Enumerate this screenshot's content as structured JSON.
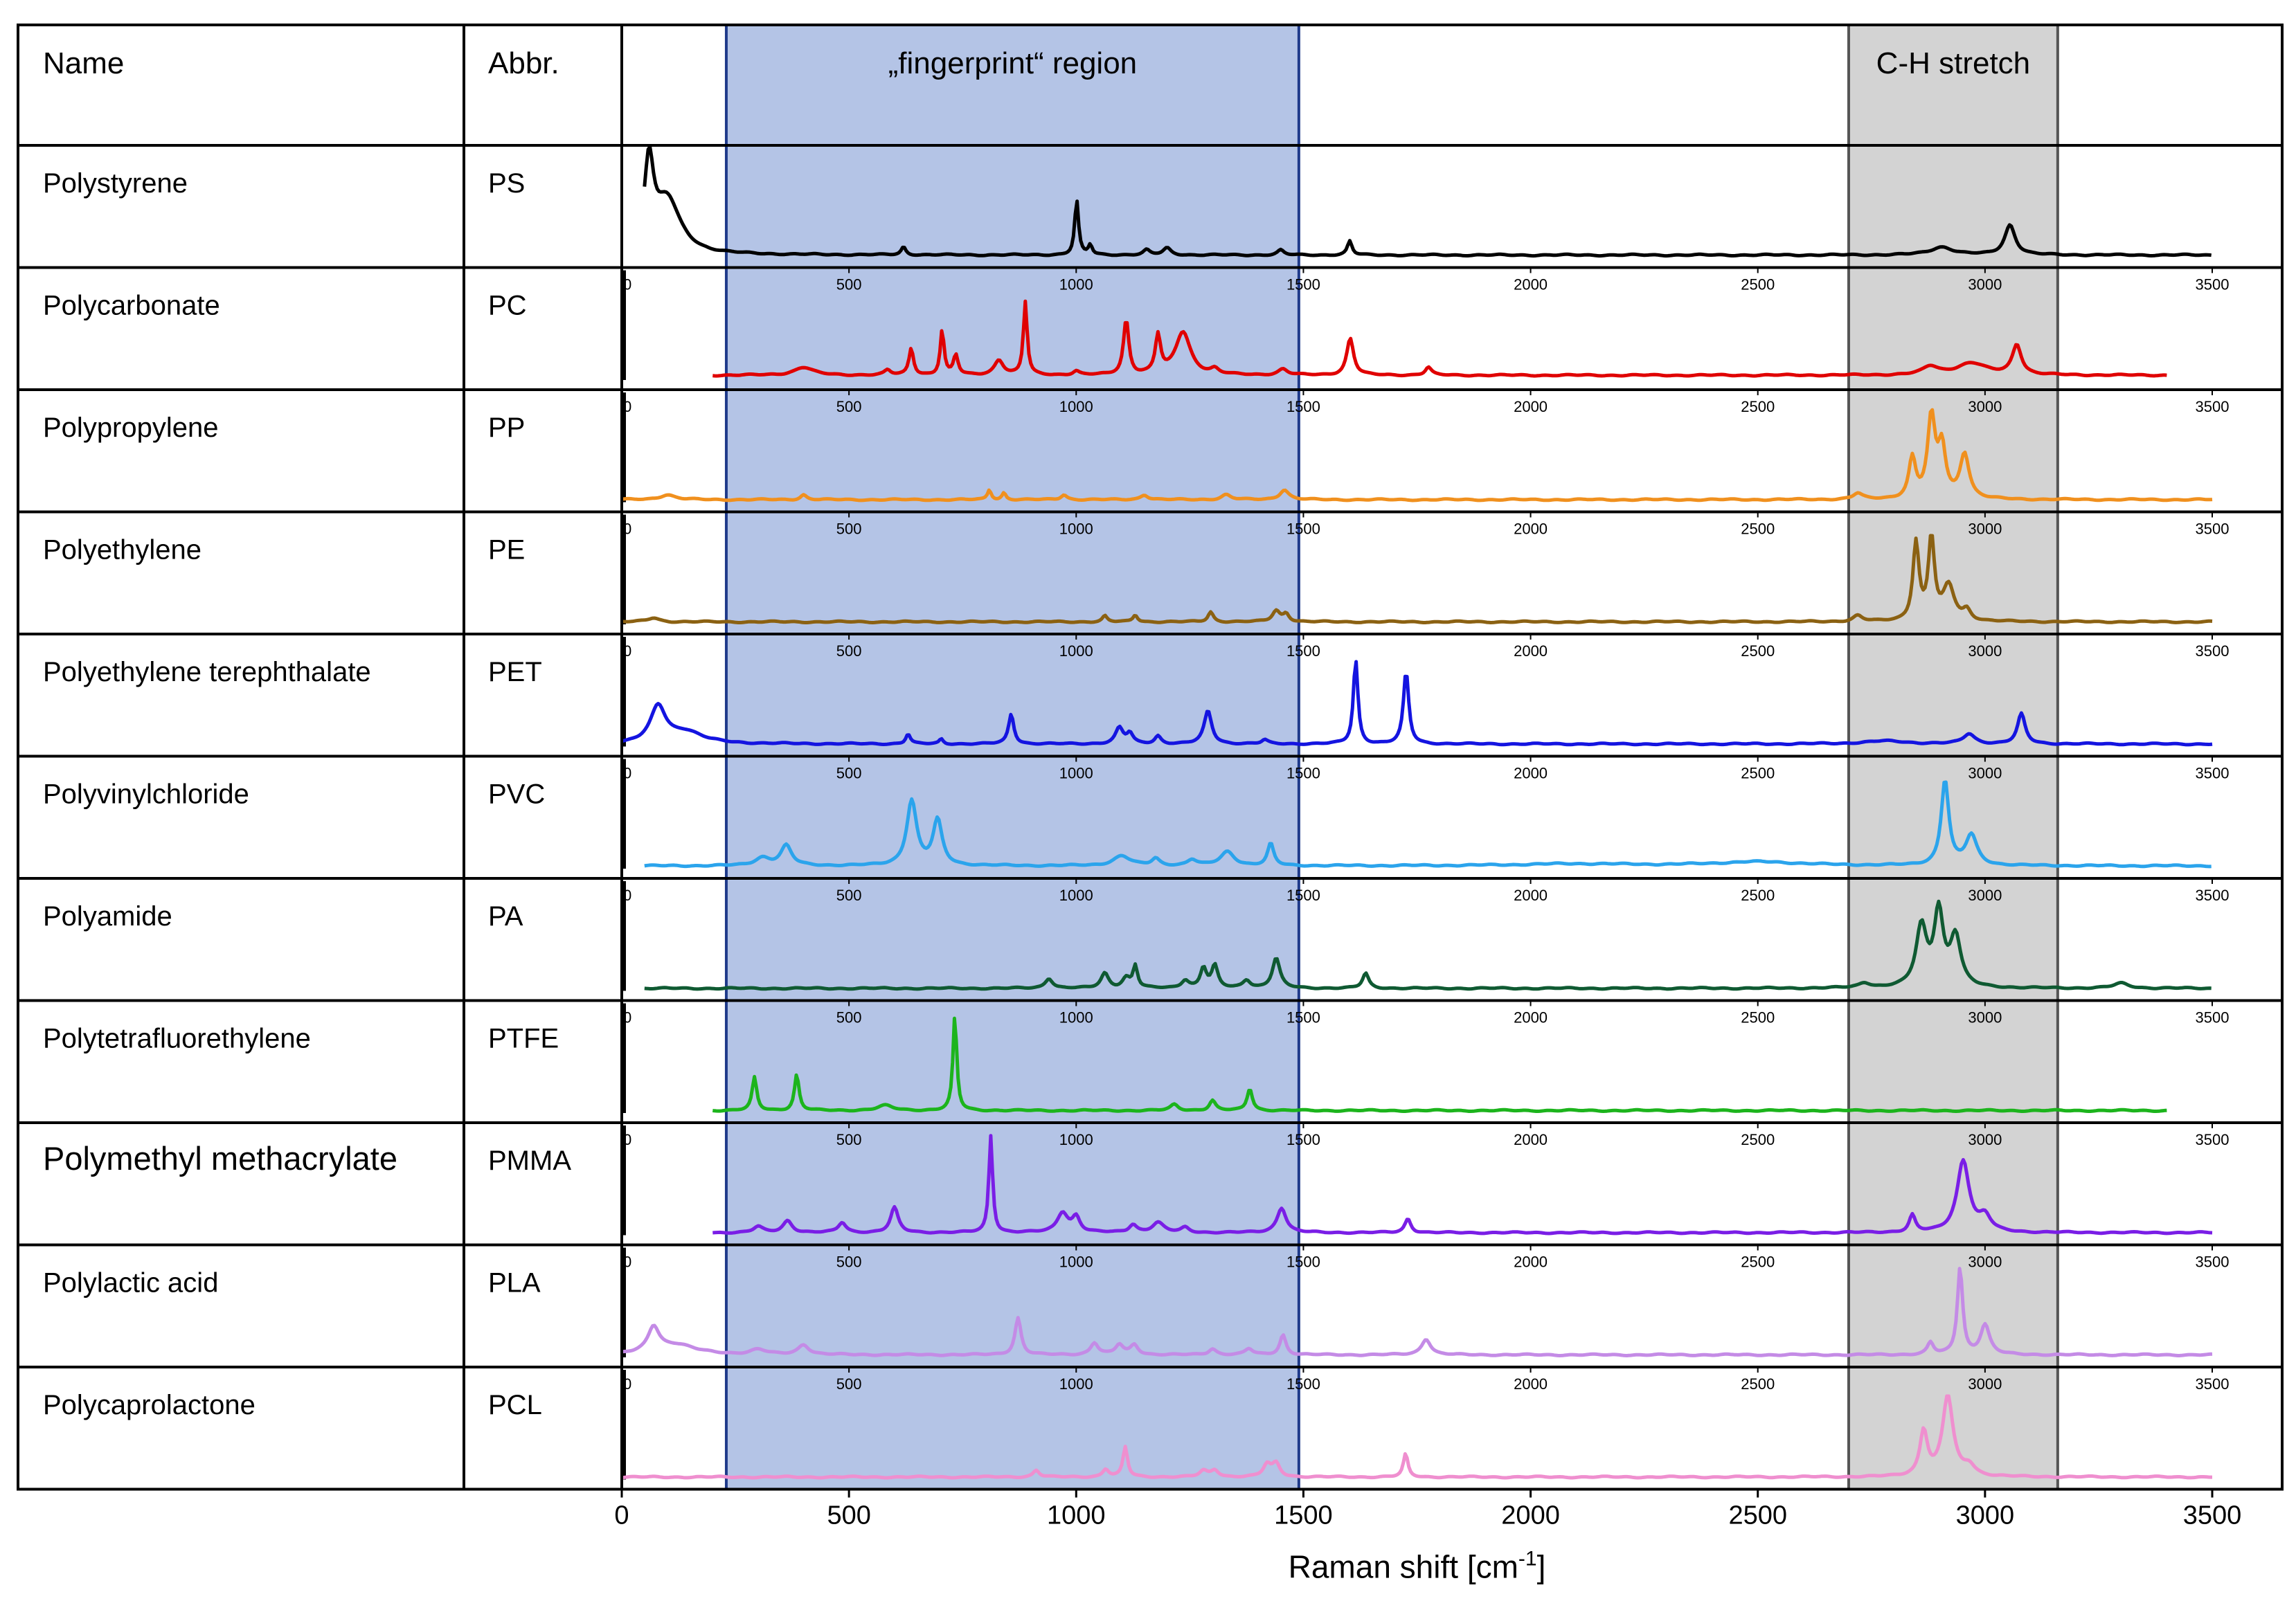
{
  "header": {
    "name_col": "Name",
    "abbr_col": "Abbr.",
    "fingerprint_label": "„fingerprint“ region",
    "ch_label": "C-H stretch"
  },
  "chart_data": {
    "type": "line",
    "title": "",
    "xlabel_main": "Raman shift [cm",
    "xlabel_sup": "-1",
    "xlabel_end": "]",
    "xlim": [
      0,
      3500
    ],
    "x_ticks": [
      "0",
      "500",
      "1000",
      "1500",
      "2000",
      "2500",
      "3000",
      "3500"
    ],
    "mini_ticks": [
      "0",
      "500",
      "1000",
      "1500",
      "2000",
      "2500",
      "3000",
      "3500"
    ],
    "regions": [
      {
        "label": "„fingerprint“ region",
        "from": 230,
        "to": 1490,
        "color": "#b4c4e6",
        "edge": "#1f3a8a"
      },
      {
        "label": "C-H stretch",
        "from": 2700,
        "to": 3160,
        "color": "#d3d3d3",
        "edge": "#555555"
      }
    ],
    "series": [
      {
        "name": "Polystyrene",
        "abbr": "PS",
        "color": "#000000",
        "x_start": 50,
        "x_end": 3500,
        "baseline": 0.05,
        "peaks": [
          [
            60,
            0.86,
            12
          ],
          [
            100,
            0.55,
            35
          ],
          [
            620,
            0.08,
            6
          ],
          [
            1001,
            0.55,
            5
          ],
          [
            1031,
            0.1,
            5
          ],
          [
            1155,
            0.05,
            8
          ],
          [
            1200,
            0.07,
            10
          ],
          [
            1450,
            0.05,
            8
          ],
          [
            1602,
            0.14,
            6
          ],
          [
            2905,
            0.08,
            30
          ],
          [
            3055,
            0.3,
            14
          ]
        ]
      },
      {
        "name": "Polycarbonate",
        "abbr": "PC",
        "color": "#e00000",
        "x_start": 200,
        "x_end": 3400,
        "baseline": 0.12,
        "peaks": [
          [
            400,
            0.08,
            25
          ],
          [
            585,
            0.05,
            8
          ],
          [
            637,
            0.27,
            6
          ],
          [
            705,
            0.45,
            5
          ],
          [
            735,
            0.2,
            6
          ],
          [
            830,
            0.15,
            12
          ],
          [
            888,
            0.73,
            5
          ],
          [
            1000,
            0.04,
            8
          ],
          [
            1110,
            0.55,
            7
          ],
          [
            1180,
            0.38,
            7
          ],
          [
            1235,
            0.43,
            20
          ],
          [
            1305,
            0.05,
            10
          ],
          [
            1455,
            0.06,
            12
          ],
          [
            1603,
            0.37,
            9
          ],
          [
            1775,
            0.08,
            8
          ],
          [
            2880,
            0.08,
            20
          ],
          [
            2970,
            0.12,
            40
          ],
          [
            3070,
            0.3,
            12
          ]
        ]
      },
      {
        "name": "Polypropylene",
        "abbr": "PP",
        "color": "#f0901e",
        "x_start": 0,
        "x_end": 3500,
        "baseline": 0.04,
        "peaks": [
          [
            100,
            0.05,
            20
          ],
          [
            400,
            0.05,
            8
          ],
          [
            809,
            0.1,
            5
          ],
          [
            841,
            0.07,
            5
          ],
          [
            973,
            0.05,
            8
          ],
          [
            1150,
            0.05,
            10
          ],
          [
            1330,
            0.05,
            12
          ],
          [
            1458,
            0.1,
            12
          ],
          [
            2720,
            0.06,
            12
          ],
          [
            2840,
            0.4,
            9
          ],
          [
            2882,
            0.8,
            10
          ],
          [
            2905,
            0.5,
            10
          ],
          [
            2955,
            0.45,
            12
          ]
        ]
      },
      {
        "name": "Polyethylene",
        "abbr": "PE",
        "color": "#8b6112",
        "x_start": 0,
        "x_end": 3500,
        "baseline": 0.04,
        "peaks": [
          [
            70,
            0.04,
            15
          ],
          [
            1063,
            0.06,
            6
          ],
          [
            1130,
            0.07,
            6
          ],
          [
            1296,
            0.1,
            7
          ],
          [
            1440,
            0.11,
            10
          ],
          [
            1462,
            0.08,
            8
          ],
          [
            2720,
            0.06,
            12
          ],
          [
            2848,
            0.78,
            8
          ],
          [
            2882,
            0.82,
            8
          ],
          [
            2920,
            0.35,
            15
          ],
          [
            2960,
            0.1,
            10
          ]
        ]
      },
      {
        "name": "Polyethylene terephthalate",
        "abbr": "PET",
        "color": "#1414e0",
        "x_start": 0,
        "x_end": 3500,
        "baseline": 0.04,
        "peaks": [
          [
            80,
            0.36,
            20
          ],
          [
            140,
            0.12,
            45
          ],
          [
            630,
            0.1,
            6
          ],
          [
            703,
            0.05,
            5
          ],
          [
            857,
            0.3,
            7
          ],
          [
            1095,
            0.16,
            10
          ],
          [
            1118,
            0.1,
            8
          ],
          [
            1180,
            0.08,
            8
          ],
          [
            1290,
            0.33,
            10
          ],
          [
            1415,
            0.04,
            8
          ],
          [
            1615,
            0.84,
            6
          ],
          [
            1726,
            0.72,
            7
          ],
          [
            2780,
            0.03,
            60
          ],
          [
            2965,
            0.1,
            15
          ],
          [
            3080,
            0.3,
            10
          ]
        ]
      },
      {
        "name": "Polyvinylchloride",
        "abbr": "PVC",
        "color": "#2ba4ec",
        "x_start": 50,
        "x_end": 3500,
        "baseline": 0.05,
        "peaks": [
          [
            310,
            0.08,
            20
          ],
          [
            362,
            0.2,
            14
          ],
          [
            638,
            0.65,
            13
          ],
          [
            695,
            0.45,
            12
          ],
          [
            1100,
            0.1,
            22
          ],
          [
            1175,
            0.07,
            10
          ],
          [
            1255,
            0.06,
            12
          ],
          [
            1333,
            0.14,
            18
          ],
          [
            1428,
            0.22,
            8
          ],
          [
            2100,
            0.02,
            150
          ],
          [
            2500,
            0.04,
            120
          ],
          [
            2912,
            0.85,
            10
          ],
          [
            2970,
            0.3,
            15
          ]
        ]
      },
      {
        "name": "Polyamide",
        "abbr": "PA",
        "color": "#0f5a32",
        "x_start": 50,
        "x_end": 3500,
        "baseline": 0.04,
        "peaks": [
          [
            940,
            0.1,
            10
          ],
          [
            1063,
            0.15,
            10
          ],
          [
            1110,
            0.1,
            10
          ],
          [
            1130,
            0.22,
            6
          ],
          [
            1240,
            0.08,
            10
          ],
          [
            1280,
            0.2,
            8
          ],
          [
            1305,
            0.22,
            8
          ],
          [
            1375,
            0.08,
            10
          ],
          [
            1440,
            0.3,
            10
          ],
          [
            1637,
            0.15,
            8
          ],
          [
            2735,
            0.05,
            15
          ],
          [
            2860,
            0.6,
            14
          ],
          [
            2898,
            0.74,
            12
          ],
          [
            2935,
            0.5,
            14
          ],
          [
            3300,
            0.05,
            20
          ]
        ]
      },
      {
        "name": "Polytetrafluorethylene",
        "abbr": "PTFE",
        "color": "#1cb41c",
        "x_start": 200,
        "x_end": 3400,
        "baseline": 0.04,
        "peaks": [
          [
            292,
            0.33,
            6
          ],
          [
            385,
            0.36,
            6
          ],
          [
            580,
            0.05,
            20
          ],
          [
            733,
            0.95,
            5
          ],
          [
            1216,
            0.06,
            10
          ],
          [
            1300,
            0.1,
            8
          ],
          [
            1382,
            0.22,
            7
          ]
        ]
      },
      {
        "name": "Polymethyl methacrylate",
        "abbr": "PMMA",
        "color": "#7a1ee6",
        "x_start": 200,
        "x_end": 3500,
        "baseline": 0.04,
        "peaks": [
          [
            300,
            0.06,
            12
          ],
          [
            365,
            0.12,
            12
          ],
          [
            485,
            0.1,
            10
          ],
          [
            600,
            0.25,
            10
          ],
          [
            812,
            0.97,
            5
          ],
          [
            970,
            0.2,
            14
          ],
          [
            1000,
            0.15,
            10
          ],
          [
            1125,
            0.08,
            10
          ],
          [
            1180,
            0.1,
            15
          ],
          [
            1240,
            0.05,
            10
          ],
          [
            1452,
            0.25,
            12
          ],
          [
            1730,
            0.14,
            8
          ],
          [
            2840,
            0.17,
            8
          ],
          [
            2952,
            0.72,
            16
          ],
          [
            3000,
            0.15,
            15
          ]
        ]
      },
      {
        "name": "Polylactic acid",
        "abbr": "PLA",
        "color": "#c48be6",
        "x_start": 0,
        "x_end": 3500,
        "baseline": 0.04,
        "peaks": [
          [
            70,
            0.25,
            15
          ],
          [
            120,
            0.1,
            50
          ],
          [
            300,
            0.05,
            20
          ],
          [
            400,
            0.1,
            14
          ],
          [
            872,
            0.37,
            8
          ],
          [
            1040,
            0.12,
            10
          ],
          [
            1095,
            0.1,
            10
          ],
          [
            1128,
            0.1,
            10
          ],
          [
            1300,
            0.06,
            10
          ],
          [
            1380,
            0.06,
            10
          ],
          [
            1455,
            0.2,
            8
          ],
          [
            1770,
            0.16,
            12
          ],
          [
            2880,
            0.12,
            8
          ],
          [
            2945,
            0.87,
            7
          ],
          [
            3000,
            0.3,
            12
          ]
        ]
      },
      {
        "name": "Polycaprolactone",
        "abbr": "PCL",
        "color": "#ef8fcf",
        "x_start": 0,
        "x_end": 3500,
        "baseline": 0.04,
        "peaks": [
          [
            912,
            0.07,
            8
          ],
          [
            1065,
            0.08,
            8
          ],
          [
            1108,
            0.3,
            6
          ],
          [
            1280,
            0.06,
            10
          ],
          [
            1305,
            0.07,
            10
          ],
          [
            1420,
            0.12,
            10
          ],
          [
            1440,
            0.13,
            10
          ],
          [
            1725,
            0.23,
            6
          ],
          [
            2865,
            0.45,
            10
          ],
          [
            2918,
            0.8,
            14
          ],
          [
            2965,
            0.1,
            15
          ]
        ]
      }
    ]
  }
}
